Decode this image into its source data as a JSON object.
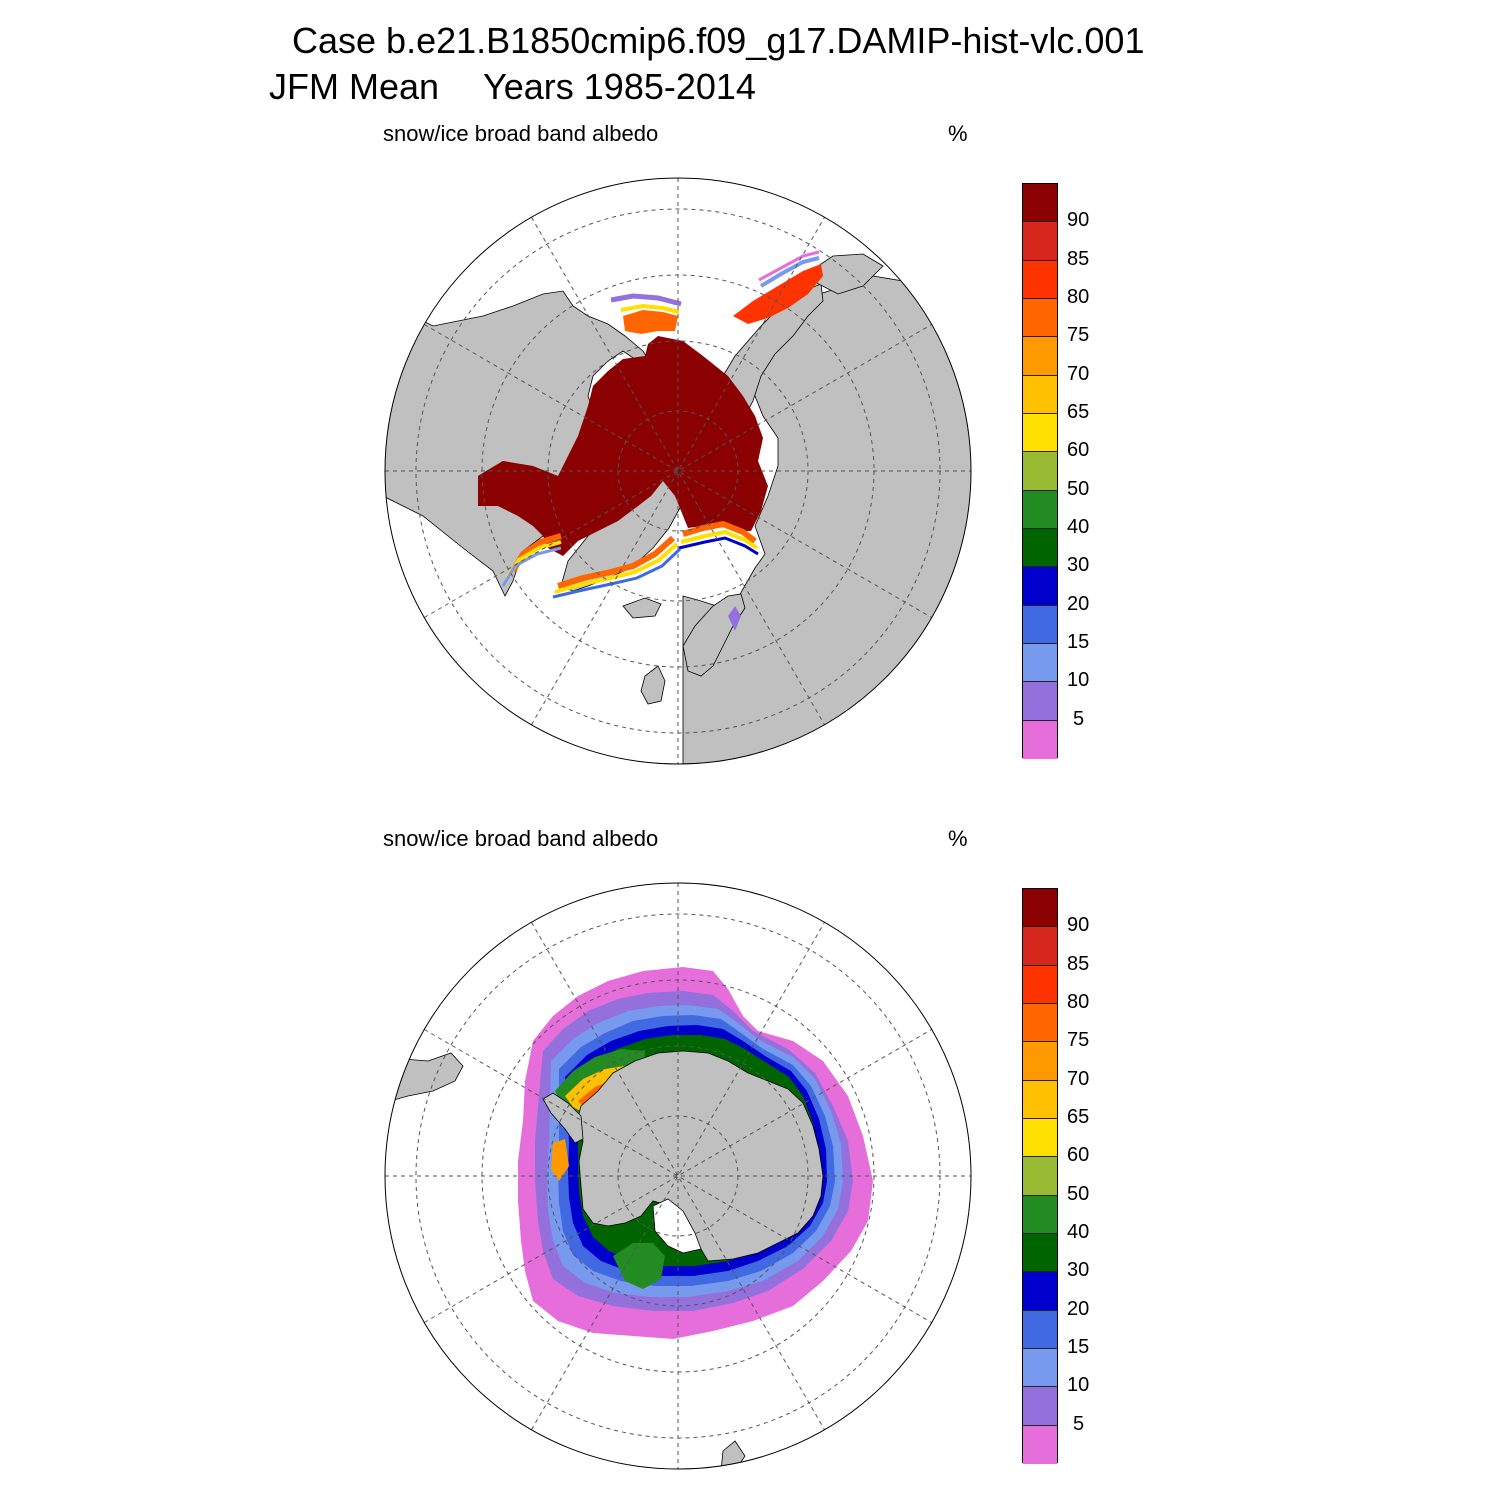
{
  "header": {
    "case_line": "Case b.e21.B1850cmip6.f09_g17.DAMIP-hist-vlc.001",
    "season": "JFM Mean",
    "years": "Years 1985-2014"
  },
  "panels": [
    {
      "label": "snow/ice broad band albedo",
      "unit": "%",
      "hemisphere": "Northern Hemisphere polar stereographic"
    },
    {
      "label": "snow/ice broad band albedo",
      "unit": "%",
      "hemisphere": "Southern Hemisphere polar stereographic"
    }
  ],
  "colorbar": {
    "levels": [
      "90",
      "85",
      "80",
      "75",
      "70",
      "65",
      "60",
      "50",
      "40",
      "30",
      "20",
      "15",
      "10",
      "5"
    ],
    "colors": [
      "#8b0000",
      "#d7261b",
      "#ff3300",
      "#ff6600",
      "#ff9900",
      "#ffc000",
      "#ffe000",
      "#99bb33",
      "#228b22",
      "#006400",
      "#0000cc",
      "#4169e1",
      "#7799ee",
      "#9370db",
      "#e56edb"
    ]
  },
  "colors": {
    "land": "#c0c0c0",
    "ocean": "#ffffff",
    "grid": "#555555"
  }
}
